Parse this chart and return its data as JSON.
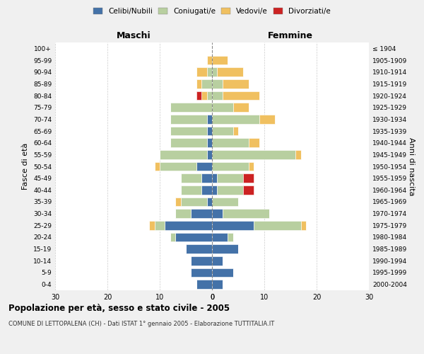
{
  "age_groups": [
    "0-4",
    "5-9",
    "10-14",
    "15-19",
    "20-24",
    "25-29",
    "30-34",
    "35-39",
    "40-44",
    "45-49",
    "50-54",
    "55-59",
    "60-64",
    "65-69",
    "70-74",
    "75-79",
    "80-84",
    "85-89",
    "90-94",
    "95-99",
    "100+"
  ],
  "birth_years": [
    "2000-2004",
    "1995-1999",
    "1990-1994",
    "1985-1989",
    "1980-1984",
    "1975-1979",
    "1970-1974",
    "1965-1969",
    "1960-1964",
    "1955-1959",
    "1950-1954",
    "1945-1949",
    "1940-1944",
    "1935-1939",
    "1930-1934",
    "1925-1929",
    "1920-1924",
    "1915-1919",
    "1910-1914",
    "1905-1909",
    "≤ 1904"
  ],
  "maschi": {
    "celibi": [
      3,
      4,
      4,
      5,
      7,
      9,
      4,
      1,
      2,
      2,
      3,
      1,
      1,
      1,
      1,
      0,
      0,
      0,
      0,
      0,
      0
    ],
    "coniugati": [
      0,
      0,
      0,
      0,
      1,
      2,
      3,
      5,
      4,
      4,
      7,
      9,
      7,
      7,
      7,
      8,
      1,
      2,
      1,
      0,
      0
    ],
    "vedovi": [
      0,
      0,
      0,
      0,
      0,
      1,
      0,
      1,
      0,
      0,
      1,
      0,
      0,
      0,
      0,
      0,
      1,
      1,
      2,
      1,
      0
    ],
    "divorziati": [
      0,
      0,
      0,
      0,
      0,
      0,
      0,
      0,
      0,
      0,
      0,
      0,
      0,
      0,
      0,
      0,
      1,
      0,
      0,
      0,
      0
    ]
  },
  "femmine": {
    "nubili": [
      2,
      4,
      2,
      5,
      3,
      8,
      2,
      0,
      1,
      1,
      0,
      0,
      0,
      0,
      0,
      0,
      0,
      0,
      0,
      0,
      0
    ],
    "coniugate": [
      0,
      0,
      0,
      0,
      1,
      9,
      9,
      5,
      5,
      5,
      7,
      16,
      7,
      4,
      9,
      4,
      2,
      2,
      1,
      0,
      0
    ],
    "vedove": [
      0,
      0,
      0,
      0,
      0,
      1,
      0,
      0,
      0,
      0,
      1,
      1,
      2,
      1,
      3,
      3,
      7,
      5,
      5,
      3,
      0
    ],
    "divorziate": [
      0,
      0,
      0,
      0,
      0,
      0,
      0,
      0,
      2,
      2,
      0,
      0,
      0,
      0,
      0,
      0,
      0,
      0,
      0,
      0,
      0
    ]
  },
  "colors": {
    "celibi_nubili": "#4472a8",
    "coniugati": "#b8cfa0",
    "vedovi": "#f0c060",
    "divorziati": "#cc2222"
  },
  "xlim": 30,
  "title": "Popolazione per età, sesso e stato civile - 2005",
  "subtitle": "COMUNE DI LETTOPALENA (CH) - Dati ISTAT 1° gennaio 2005 - Elaborazione TUTTITALIA.IT",
  "ylabel_left": "Fasce di età",
  "ylabel_right": "Anni di nascita",
  "xlabel_left": "Maschi",
  "xlabel_right": "Femmine",
  "bg_color": "#f0f0f0",
  "plot_bg": "#ffffff"
}
